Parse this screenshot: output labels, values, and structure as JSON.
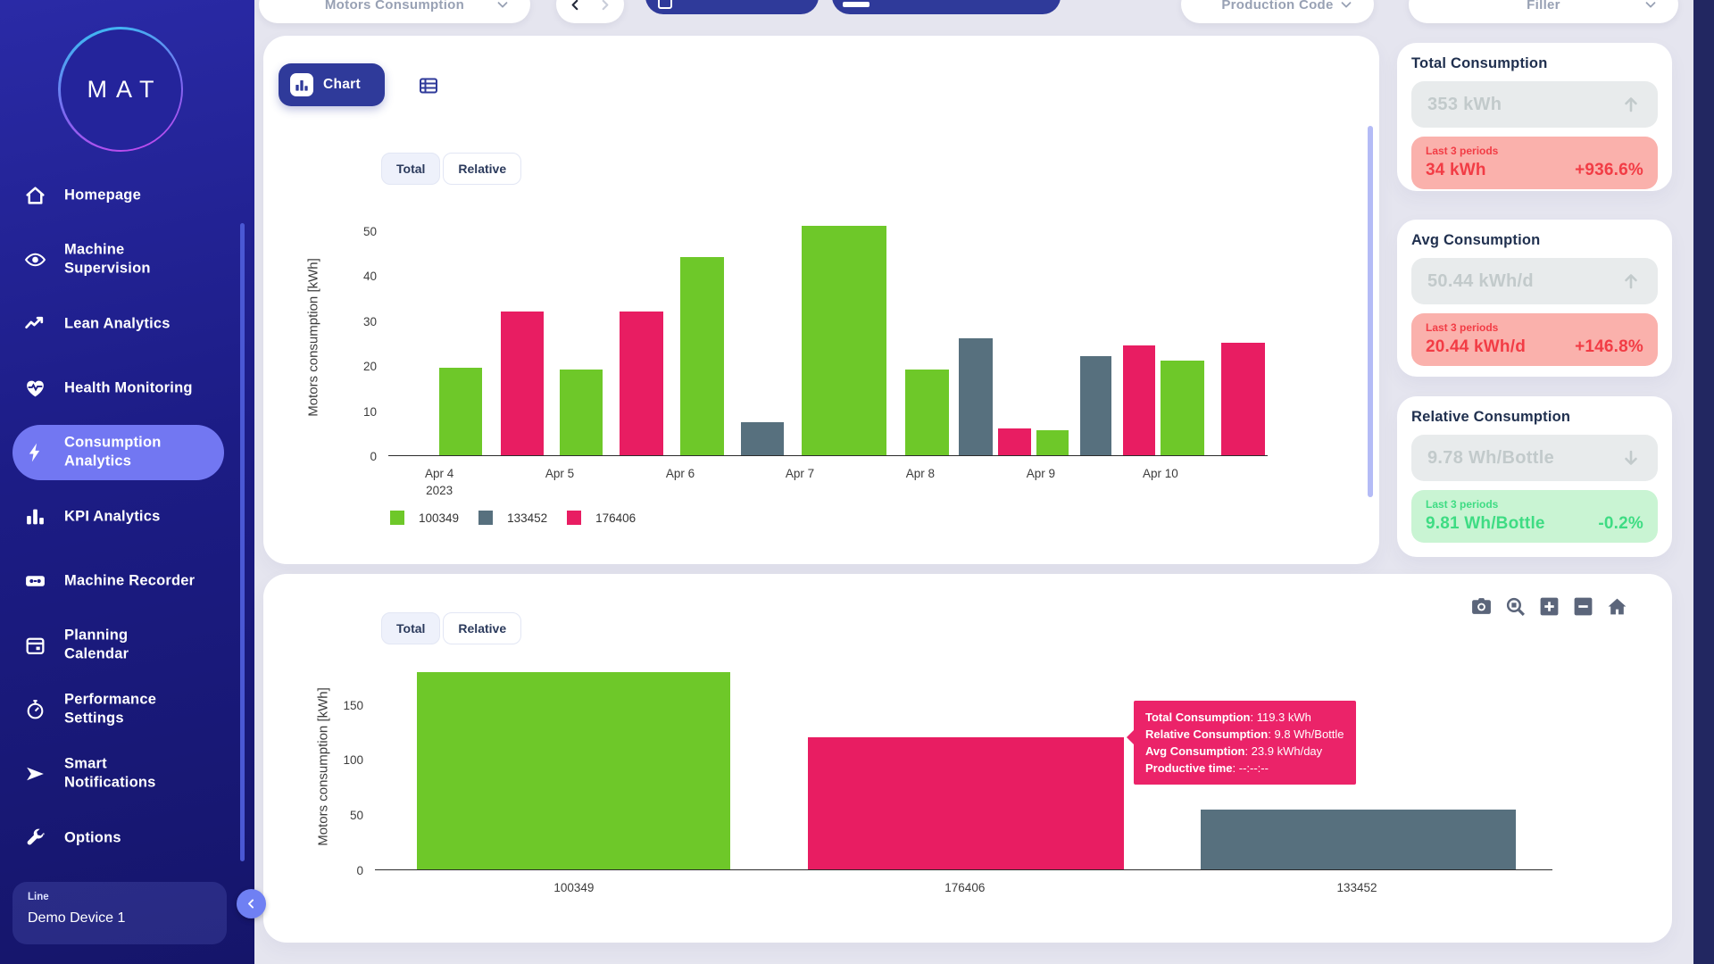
{
  "app": {
    "logo_text": "MAT"
  },
  "sidebar": {
    "items": [
      {
        "label": "Homepage",
        "icon": "home",
        "active": false
      },
      {
        "label": "Machine\nSupervision",
        "icon": "eye",
        "active": false
      },
      {
        "label": "Lean Analytics",
        "icon": "trend-line",
        "active": false
      },
      {
        "label": "Health Monitoring",
        "icon": "heart-pulse",
        "active": false
      },
      {
        "label": "Consumption\nAnalytics",
        "icon": "lightning-bolt",
        "active": true
      },
      {
        "label": "KPI Analytics",
        "icon": "bar-chart",
        "active": false
      },
      {
        "label": "Machine Recorder",
        "icon": "cassette",
        "active": false
      },
      {
        "label": "Planning\nCalendar",
        "icon": "calendar",
        "active": false
      },
      {
        "label": "Performance\nSettings",
        "icon": "stopwatch",
        "active": false
      },
      {
        "label": "Smart\nNotifications",
        "icon": "paper-plane",
        "active": false
      },
      {
        "label": "Options",
        "icon": "wrench",
        "active": false
      }
    ],
    "device_selector": {
      "type_label": "Line",
      "device_name": "Demo Device 1"
    }
  },
  "topbar": {
    "metric_select": {
      "value": "Motors Consumption"
    },
    "production_code_select": {
      "value": "Production Code"
    },
    "filler_select": {
      "value": "Filler"
    }
  },
  "panel_top": {
    "chart_tab": "Chart",
    "mode_toggle": {
      "options": [
        "Total",
        "Relative"
      ],
      "selected": "Total"
    }
  },
  "panel_bottom": {
    "mode_toggle": {
      "options": [
        "Total",
        "Relative"
      ],
      "selected": "Total"
    },
    "tooltip": {
      "rows": [
        {
          "label": "Total Consumption",
          "value": "119.3 kWh"
        },
        {
          "label": "Relative Consumption",
          "value": "9.8 Wh/Bottle"
        },
        {
          "label": "Avg Consumption",
          "value": "23.9 kWh/day"
        },
        {
          "label": "Productive time",
          "value": "--:--:--"
        }
      ]
    }
  },
  "kpi_cards": [
    {
      "title": "Total Consumption",
      "value": "353 kWh",
      "trend": "up",
      "period_label": "Last 3 periods",
      "period_value": "34 kWh",
      "period_change": "+936.6%",
      "status": "bad"
    },
    {
      "title": "Avg Consumption",
      "value": "50.44 kWh/d",
      "trend": "up",
      "period_label": "Last 3 periods",
      "period_value": "20.44 kWh/d",
      "period_change": "+146.8%",
      "status": "bad"
    },
    {
      "title": "Relative Consumption",
      "value": "9.78 Wh/Bottle",
      "trend": "down",
      "period_label": "Last 3 periods",
      "period_value": "9.81 Wh/Bottle",
      "period_change": "-0.2%",
      "status": "good"
    }
  ],
  "chart_data": [
    {
      "type": "bar",
      "title": "",
      "ylabel": "Motors consumption [kWh]",
      "ylim": [
        0,
        52.6
      ],
      "yticks": [
        0,
        10,
        20,
        30,
        40,
        50
      ],
      "grid": false,
      "legend_position": "bottom-left",
      "legend": [
        "100349",
        "133452",
        "176406"
      ],
      "xticks": [
        {
          "label": "Apr 4",
          "sub": "2023",
          "x_pct": 5.8
        },
        {
          "label": "Apr 5",
          "x_pct": 19.5
        },
        {
          "label": "Apr 6",
          "x_pct": 33.2
        },
        {
          "label": "Apr 7",
          "x_pct": 46.8
        },
        {
          "label": "Apr 8",
          "x_pct": 60.5
        },
        {
          "label": "Apr 9",
          "x_pct": 74.2
        },
        {
          "label": "Apr 10",
          "x_pct": 87.8
        }
      ],
      "bars": [
        {
          "series": "100349",
          "date": "Apr 4",
          "value": 19.5,
          "x_pct": 5.8,
          "w_pct": 4.9
        },
        {
          "series": "176406",
          "date": "Apr 4",
          "value": 32,
          "x_pct": 12.8,
          "w_pct": 4.9
        },
        {
          "series": "100349",
          "date": "Apr 5",
          "value": 19,
          "x_pct": 19.5,
          "w_pct": 4.9
        },
        {
          "series": "176406",
          "date": "Apr 5",
          "value": 32,
          "x_pct": 26.3,
          "w_pct": 5.0
        },
        {
          "series": "100349",
          "date": "Apr 6",
          "value": 44,
          "x_pct": 33.2,
          "w_pct": 5.0
        },
        {
          "series": "133452",
          "date": "Apr 6",
          "value": 7.3,
          "x_pct": 40.1,
          "w_pct": 4.9
        },
        {
          "series": "100349",
          "date": "Apr 7",
          "value": 51,
          "x_pct": 47.0,
          "w_pct": 9.7
        },
        {
          "series": "100349",
          "date": "Apr 8",
          "value": 19,
          "x_pct": 58.8,
          "w_pct": 5.0
        },
        {
          "series": "133452",
          "date": "Apr 8",
          "value": 26,
          "x_pct": 64.9,
          "w_pct": 3.8
        },
        {
          "series": "176406",
          "date": "Apr 9",
          "value": 6,
          "x_pct": 69.3,
          "w_pct": 3.8
        },
        {
          "series": "100349",
          "date": "Apr 9",
          "value": 5.5,
          "x_pct": 73.7,
          "w_pct": 3.7
        },
        {
          "series": "133452",
          "date": "Apr 9",
          "value": 22,
          "x_pct": 78.7,
          "w_pct": 3.5
        },
        {
          "series": "176406",
          "date": "Apr 10",
          "value": 24.5,
          "x_pct": 83.6,
          "w_pct": 3.6
        },
        {
          "series": "100349",
          "date": "Apr 10",
          "value": 21,
          "x_pct": 87.8,
          "w_pct": 5.0
        },
        {
          "series": "176406",
          "date": "Apr 10",
          "value": 25,
          "x_pct": 94.7,
          "w_pct": 5.0
        }
      ]
    },
    {
      "type": "bar",
      "title": "",
      "ylabel": "Motors consumption [kWh]",
      "ylim": [
        0,
        186
      ],
      "yticks": [
        0,
        50,
        100,
        150
      ],
      "grid": false,
      "categories": [
        "100349",
        "176406",
        "133452"
      ],
      "values": [
        179,
        119.3,
        54.3
      ],
      "bar_layout": [
        {
          "x_pct": 3.6,
          "w_pct": 26.6
        },
        {
          "x_pct": 36.8,
          "w_pct": 26.8
        },
        {
          "x_pct": 70.1,
          "w_pct": 26.8
        }
      ],
      "tick_x_pct": [
        16.9,
        50.1,
        83.4
      ]
    }
  ],
  "colors": {
    "series": {
      "100349": "#6ec829",
      "133452": "#57707e",
      "176406": "#e81d62"
    },
    "accent_blue": "#2f3a9a",
    "active_nav": "#7277f2",
    "kpi_bad_bg": "#fab1ac",
    "kpi_bad_text": "#f23c45",
    "kpi_good_bg": "#c9f4d3",
    "kpi_good_text": "#3edc83",
    "kpi_neutral_bg": "#e8ebec",
    "kpi_neutral_text": "#c2cacb",
    "tooltip_bg": "#eb2369"
  }
}
